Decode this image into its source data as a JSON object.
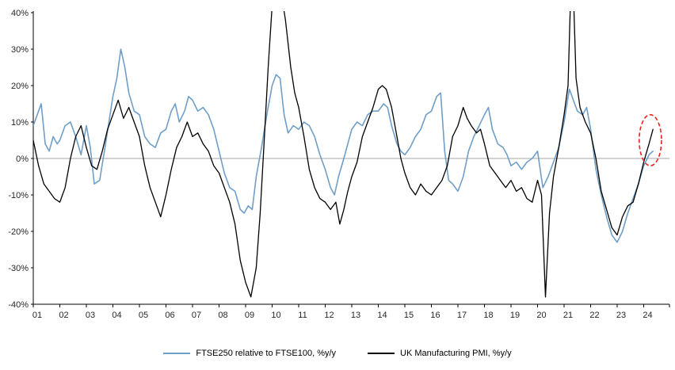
{
  "chart_data": {
    "type": "line",
    "title": "",
    "xlabel": "",
    "ylabel": "",
    "grid": "off",
    "legend_position": "bottom-center",
    "x_axis": {
      "tick_labels": [
        "01",
        "02",
        "03",
        "04",
        "05",
        "06",
        "07",
        "08",
        "09",
        "10",
        "11",
        "12",
        "13",
        "14",
        "15",
        "16",
        "17",
        "18",
        "19",
        "20",
        "21",
        "22",
        "23",
        "24"
      ],
      "tick_years": [
        2001,
        2002,
        2003,
        2004,
        2005,
        2006,
        2007,
        2008,
        2009,
        2010,
        2011,
        2012,
        2013,
        2014,
        2015,
        2016,
        2017,
        2018,
        2019,
        2020,
        2021,
        2022,
        2023,
        2024
      ],
      "range": [
        2001,
        2024.6
      ]
    },
    "y_axis": {
      "tick_labels": [
        "40%",
        "30%",
        "20%",
        "10%",
        "0%",
        "-10%",
        "-20%",
        "-30%",
        "-40%"
      ],
      "tick_values": [
        40,
        30,
        20,
        10,
        0,
        -10,
        -20,
        -30,
        -40
      ],
      "range": [
        -40,
        40
      ],
      "format": "percent"
    },
    "zero_line_color": "#a6a6a6",
    "axis_color": "#000000",
    "resolution_note": "values estimated from plot, approx. quarterly",
    "series": [
      {
        "name": "FTSE250 relative to FTSE100, %y/y",
        "color": "#6f9fc8",
        "width": 1.6,
        "points": [
          [
            2001.0,
            9
          ],
          [
            2001.2,
            13
          ],
          [
            2001.3,
            15
          ],
          [
            2001.45,
            4
          ],
          [
            2001.6,
            2
          ],
          [
            2001.75,
            6
          ],
          [
            2001.9,
            4
          ],
          [
            2002.0,
            5
          ],
          [
            2002.2,
            9
          ],
          [
            2002.4,
            10
          ],
          [
            2002.6,
            6
          ],
          [
            2002.8,
            1
          ],
          [
            2003.0,
            9
          ],
          [
            2003.15,
            3
          ],
          [
            2003.3,
            -7
          ],
          [
            2003.5,
            -6
          ],
          [
            2003.7,
            3
          ],
          [
            2003.85,
            10
          ],
          [
            2004.0,
            17
          ],
          [
            2004.15,
            22
          ],
          [
            2004.3,
            30
          ],
          [
            2004.45,
            25
          ],
          [
            2004.6,
            18
          ],
          [
            2004.8,
            13
          ],
          [
            2005.0,
            12
          ],
          [
            2005.2,
            6
          ],
          [
            2005.4,
            4
          ],
          [
            2005.6,
            3
          ],
          [
            2005.8,
            7
          ],
          [
            2006.0,
            8
          ],
          [
            2006.2,
            13
          ],
          [
            2006.35,
            15
          ],
          [
            2006.5,
            10
          ],
          [
            2006.7,
            13
          ],
          [
            2006.85,
            17
          ],
          [
            2007.0,
            16
          ],
          [
            2007.2,
            13
          ],
          [
            2007.4,
            14
          ],
          [
            2007.6,
            12
          ],
          [
            2007.8,
            8
          ],
          [
            2008.0,
            2
          ],
          [
            2008.2,
            -4
          ],
          [
            2008.4,
            -8
          ],
          [
            2008.6,
            -9
          ],
          [
            2008.8,
            -14
          ],
          [
            2008.95,
            -15
          ],
          [
            2009.1,
            -13
          ],
          [
            2009.25,
            -14
          ],
          [
            2009.4,
            -5
          ],
          [
            2009.6,
            3
          ],
          [
            2009.8,
            12
          ],
          [
            2010.0,
            20
          ],
          [
            2010.15,
            23
          ],
          [
            2010.3,
            22
          ],
          [
            2010.45,
            12
          ],
          [
            2010.6,
            7
          ],
          [
            2010.8,
            9
          ],
          [
            2011.0,
            8
          ],
          [
            2011.2,
            10
          ],
          [
            2011.4,
            9
          ],
          [
            2011.6,
            6
          ],
          [
            2011.8,
            1
          ],
          [
            2012.0,
            -3
          ],
          [
            2012.2,
            -8
          ],
          [
            2012.35,
            -10
          ],
          [
            2012.5,
            -5
          ],
          [
            2012.7,
            0
          ],
          [
            2012.85,
            4
          ],
          [
            2013.0,
            8
          ],
          [
            2013.2,
            10
          ],
          [
            2013.4,
            9
          ],
          [
            2013.6,
            12
          ],
          [
            2013.8,
            13
          ],
          [
            2014.0,
            13
          ],
          [
            2014.2,
            15
          ],
          [
            2014.35,
            14
          ],
          [
            2014.5,
            9
          ],
          [
            2014.7,
            4
          ],
          [
            2014.85,
            2
          ],
          [
            2015.0,
            1
          ],
          [
            2015.2,
            3
          ],
          [
            2015.4,
            6
          ],
          [
            2015.6,
            8
          ],
          [
            2015.8,
            12
          ],
          [
            2016.0,
            13
          ],
          [
            2016.2,
            17
          ],
          [
            2016.35,
            18
          ],
          [
            2016.5,
            2
          ],
          [
            2016.65,
            -6
          ],
          [
            2016.8,
            -7
          ],
          [
            2017.0,
            -9
          ],
          [
            2017.2,
            -5
          ],
          [
            2017.4,
            2
          ],
          [
            2017.6,
            6
          ],
          [
            2017.8,
            9
          ],
          [
            2018.0,
            12
          ],
          [
            2018.15,
            14
          ],
          [
            2018.3,
            8
          ],
          [
            2018.5,
            4
          ],
          [
            2018.7,
            3
          ],
          [
            2018.85,
            1
          ],
          [
            2019.0,
            -2
          ],
          [
            2019.2,
            -1
          ],
          [
            2019.4,
            -3
          ],
          [
            2019.6,
            -1
          ],
          [
            2019.8,
            0
          ],
          [
            2020.0,
            2
          ],
          [
            2020.2,
            -8
          ],
          [
            2020.4,
            -5
          ],
          [
            2020.6,
            -1
          ],
          [
            2020.8,
            3
          ],
          [
            2021.0,
            10
          ],
          [
            2021.2,
            19
          ],
          [
            2021.35,
            16
          ],
          [
            2021.5,
            13
          ],
          [
            2021.7,
            12
          ],
          [
            2021.85,
            14
          ],
          [
            2022.0,
            8
          ],
          [
            2022.2,
            -3
          ],
          [
            2022.4,
            -10
          ],
          [
            2022.6,
            -16
          ],
          [
            2022.8,
            -21
          ],
          [
            2023.0,
            -23
          ],
          [
            2023.2,
            -20
          ],
          [
            2023.4,
            -15
          ],
          [
            2023.6,
            -11
          ],
          [
            2023.8,
            -7
          ],
          [
            2024.0,
            -2
          ],
          [
            2024.2,
            1
          ],
          [
            2024.35,
            2
          ]
        ]
      },
      {
        "name": "UK Manufacturing PMI, %y/y",
        "color": "#000000",
        "width": 1.3,
        "points": [
          [
            2001.0,
            5
          ],
          [
            2001.2,
            -2
          ],
          [
            2001.4,
            -7
          ],
          [
            2001.6,
            -9
          ],
          [
            2001.8,
            -11
          ],
          [
            2002.0,
            -12
          ],
          [
            2002.2,
            -8
          ],
          [
            2002.4,
            0
          ],
          [
            2002.6,
            6
          ],
          [
            2002.8,
            9
          ],
          [
            2003.0,
            3
          ],
          [
            2003.2,
            -2
          ],
          [
            2003.4,
            -3
          ],
          [
            2003.6,
            2
          ],
          [
            2003.8,
            8
          ],
          [
            2004.0,
            12
          ],
          [
            2004.2,
            16
          ],
          [
            2004.4,
            11
          ],
          [
            2004.6,
            14
          ],
          [
            2004.8,
            10
          ],
          [
            2005.0,
            6
          ],
          [
            2005.2,
            -2
          ],
          [
            2005.4,
            -8
          ],
          [
            2005.6,
            -12
          ],
          [
            2005.8,
            -16
          ],
          [
            2006.0,
            -10
          ],
          [
            2006.2,
            -3
          ],
          [
            2006.4,
            3
          ],
          [
            2006.6,
            6
          ],
          [
            2006.8,
            10
          ],
          [
            2007.0,
            6
          ],
          [
            2007.2,
            7
          ],
          [
            2007.4,
            4
          ],
          [
            2007.6,
            2
          ],
          [
            2007.8,
            -2
          ],
          [
            2008.0,
            -4
          ],
          [
            2008.2,
            -8
          ],
          [
            2008.4,
            -12
          ],
          [
            2008.6,
            -18
          ],
          [
            2008.8,
            -28
          ],
          [
            2009.0,
            -34
          ],
          [
            2009.2,
            -38
          ],
          [
            2009.4,
            -30
          ],
          [
            2009.55,
            -15
          ],
          [
            2009.7,
            5
          ],
          [
            2009.85,
            25
          ],
          [
            2010.0,
            42
          ],
          [
            2010.2,
            55
          ],
          [
            2010.35,
            45
          ],
          [
            2010.5,
            38
          ],
          [
            2010.7,
            25
          ],
          [
            2010.85,
            18
          ],
          [
            2011.0,
            14
          ],
          [
            2011.2,
            6
          ],
          [
            2011.4,
            -3
          ],
          [
            2011.6,
            -8
          ],
          [
            2011.8,
            -11
          ],
          [
            2012.0,
            -12
          ],
          [
            2012.2,
            -14
          ],
          [
            2012.4,
            -12
          ],
          [
            2012.55,
            -18
          ],
          [
            2012.7,
            -14
          ],
          [
            2012.85,
            -9
          ],
          [
            2013.0,
            -5
          ],
          [
            2013.2,
            -1
          ],
          [
            2013.4,
            6
          ],
          [
            2013.6,
            10
          ],
          [
            2013.8,
            14
          ],
          [
            2014.0,
            19
          ],
          [
            2014.15,
            20
          ],
          [
            2014.3,
            19
          ],
          [
            2014.5,
            14
          ],
          [
            2014.7,
            6
          ],
          [
            2014.85,
            0
          ],
          [
            2015.0,
            -4
          ],
          [
            2015.2,
            -8
          ],
          [
            2015.4,
            -10
          ],
          [
            2015.6,
            -7
          ],
          [
            2015.8,
            -9
          ],
          [
            2016.0,
            -10
          ],
          [
            2016.2,
            -8
          ],
          [
            2016.4,
            -6
          ],
          [
            2016.6,
            -2
          ],
          [
            2016.8,
            6
          ],
          [
            2017.0,
            9
          ],
          [
            2017.2,
            14
          ],
          [
            2017.35,
            11
          ],
          [
            2017.5,
            9
          ],
          [
            2017.7,
            7
          ],
          [
            2017.85,
            8
          ],
          [
            2018.0,
            4
          ],
          [
            2018.2,
            -2
          ],
          [
            2018.4,
            -4
          ],
          [
            2018.6,
            -6
          ],
          [
            2018.8,
            -8
          ],
          [
            2019.0,
            -6
          ],
          [
            2019.2,
            -9
          ],
          [
            2019.4,
            -8
          ],
          [
            2019.6,
            -11
          ],
          [
            2019.8,
            -12
          ],
          [
            2020.0,
            -6
          ],
          [
            2020.15,
            -10
          ],
          [
            2020.3,
            -38
          ],
          [
            2020.45,
            -15
          ],
          [
            2020.6,
            -5
          ],
          [
            2020.8,
            3
          ],
          [
            2021.0,
            12
          ],
          [
            2021.15,
            20
          ],
          [
            2021.3,
            58
          ],
          [
            2021.45,
            22
          ],
          [
            2021.6,
            14
          ],
          [
            2021.8,
            10
          ],
          [
            2022.0,
            7
          ],
          [
            2022.2,
            0
          ],
          [
            2022.4,
            -9
          ],
          [
            2022.6,
            -14
          ],
          [
            2022.8,
            -19
          ],
          [
            2023.0,
            -21
          ],
          [
            2023.2,
            -16
          ],
          [
            2023.4,
            -13
          ],
          [
            2023.6,
            -12
          ],
          [
            2023.8,
            -7
          ],
          [
            2024.0,
            -1
          ],
          [
            2024.2,
            4
          ],
          [
            2024.35,
            8
          ]
        ]
      }
    ],
    "annotation": {
      "shape": "dashed-ellipse",
      "color": "#e8251f",
      "center_x_year": 2024.25,
      "center_y_pct": 5,
      "radius_x_years": 0.42,
      "radius_y_pct": 7
    }
  }
}
